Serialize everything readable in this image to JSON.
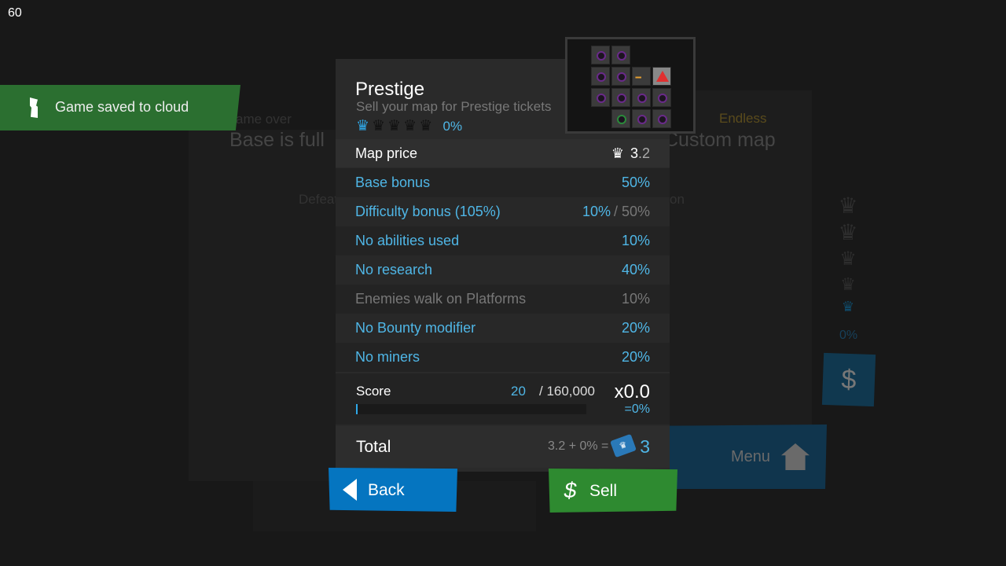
{
  "fps": "60",
  "toast": {
    "icon": "info-icon",
    "text": "Game saved to cloud",
    "color": "#2b6f30"
  },
  "background": {
    "left_panel": {
      "subtitle": "ame over",
      "title": "Base is full",
      "text": "Defeat"
    },
    "right_panel": {
      "subtitle": "Endless",
      "title": "Custom map",
      "text": "on"
    },
    "crown_percent": "0%",
    "menu_label": "Menu"
  },
  "prestige": {
    "title": "Prestige",
    "subtitle": "Sell your map for Prestige tickets",
    "crowns_filled": 1,
    "crowns_total": 5,
    "percent": "0%",
    "map_price_label": "Map price",
    "map_price_int": "3",
    "map_price_dec": ".2",
    "bonuses": [
      {
        "label": "Base bonus",
        "value": "50%",
        "active": true
      },
      {
        "label": "Difficulty bonus (105%)",
        "value": "10%",
        "max": "/ 50%",
        "active": true
      },
      {
        "label": "No abilities used",
        "value": "10%",
        "active": true
      },
      {
        "label": "No research",
        "value": "40%",
        "active": true
      },
      {
        "label": "Enemies walk on Platforms",
        "value": "10%",
        "active": false
      },
      {
        "label": "No Bounty modifier",
        "value": "20%",
        "active": true
      },
      {
        "label": "No miners",
        "value": "20%",
        "active": true
      }
    ],
    "score": {
      "label": "Score",
      "current": "20",
      "target": "/ 160,000",
      "progress": 0.000125,
      "multiplier": "x0.0",
      "percent": "=0%"
    },
    "total": {
      "label": "Total",
      "formula": "3.2 + 0% =",
      "tickets": "3"
    }
  },
  "buttons": {
    "back": "Back",
    "sell": "Sell"
  },
  "colors": {
    "accent": "#4fb6e6",
    "back": "#0575c0",
    "sell": "#2e8a30"
  }
}
